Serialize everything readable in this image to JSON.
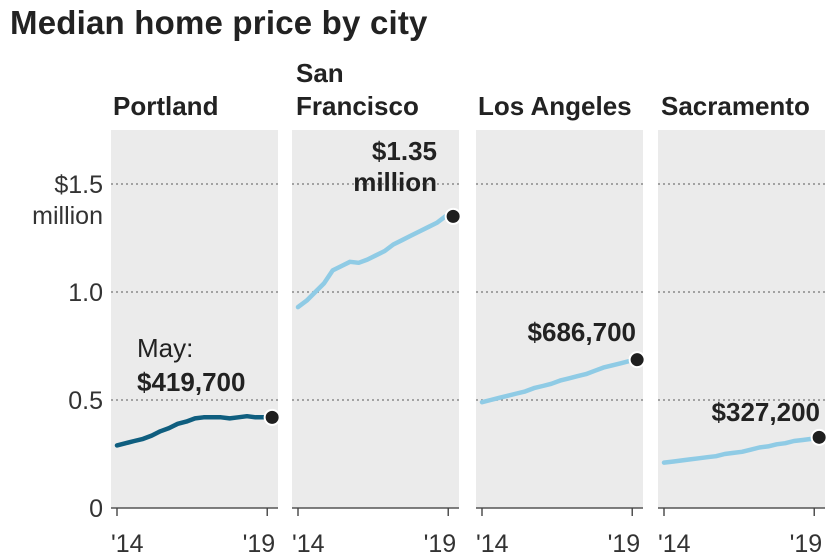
{
  "title": "Median home price by city",
  "colors": {
    "panel_bg": "#ebebeb",
    "portland_line": "#0f5e7f",
    "other_line": "#8fcbe5",
    "marker": "#1f1f1f",
    "grid": "#8a8a8a"
  },
  "chart_data": {
    "type": "line",
    "title": "Median home price by city",
    "y_unit": "million dollars",
    "ylim": [
      0,
      1.75
    ],
    "y_ticks": [
      {
        "value": 0,
        "label": [
          "0"
        ]
      },
      {
        "value": 0.5,
        "label": [
          "0.5"
        ]
      },
      {
        "value": 1.0,
        "label": [
          "1.0"
        ]
      },
      {
        "value": 1.5,
        "label": [
          "$1.5",
          "million"
        ]
      }
    ],
    "x_ticks": [
      "'14",
      "'19"
    ],
    "xlim": [
      2014,
      2019.4
    ],
    "grid": true,
    "panels": [
      {
        "name": [
          "Portland"
        ],
        "callout": [
          "May:",
          "$419,700"
        ],
        "end_value": 0.4197,
        "color_key": "portland_line",
        "x": [
          2014.0,
          2014.3,
          2014.6,
          2014.9,
          2015.2,
          2015.5,
          2015.8,
          2016.1,
          2016.4,
          2016.7,
          2017.0,
          2017.3,
          2017.6,
          2017.9,
          2018.2,
          2018.5,
          2018.8,
          2019.1,
          2019.37
        ],
        "y": [
          0.29,
          0.3,
          0.31,
          0.32,
          0.335,
          0.355,
          0.37,
          0.39,
          0.4,
          0.415,
          0.42,
          0.42,
          0.42,
          0.415,
          0.42,
          0.425,
          0.42,
          0.42,
          0.4197
        ]
      },
      {
        "name": [
          "San",
          "Francisco"
        ],
        "callout": [
          "$1.35",
          "million"
        ],
        "end_value": 1.35,
        "color_key": "other_line",
        "x": [
          2014.0,
          2014.3,
          2014.6,
          2014.9,
          2015.2,
          2015.5,
          2015.8,
          2016.1,
          2016.4,
          2016.7,
          2017.0,
          2017.3,
          2017.6,
          2017.9,
          2018.2,
          2018.5,
          2018.8,
          2019.1,
          2019.37
        ],
        "y": [
          0.93,
          0.96,
          1.0,
          1.04,
          1.1,
          1.12,
          1.14,
          1.135,
          1.15,
          1.17,
          1.19,
          1.22,
          1.24,
          1.26,
          1.28,
          1.3,
          1.32,
          1.35,
          1.35
        ]
      },
      {
        "name": [
          "Los Angeles"
        ],
        "callout": [
          "$686,700"
        ],
        "end_value": 0.6867,
        "color_key": "other_line",
        "x": [
          2014.0,
          2014.3,
          2014.6,
          2014.9,
          2015.2,
          2015.5,
          2015.8,
          2016.1,
          2016.4,
          2016.7,
          2017.0,
          2017.3,
          2017.6,
          2017.9,
          2018.2,
          2018.5,
          2018.8,
          2019.1,
          2019.37
        ],
        "y": [
          0.49,
          0.5,
          0.51,
          0.52,
          0.53,
          0.54,
          0.555,
          0.565,
          0.575,
          0.59,
          0.6,
          0.61,
          0.62,
          0.635,
          0.65,
          0.66,
          0.67,
          0.68,
          0.6867
        ]
      },
      {
        "name": [
          "Sacramento"
        ],
        "callout": [
          "$327,200"
        ],
        "end_value": 0.3272,
        "color_key": "other_line",
        "x": [
          2014.0,
          2014.3,
          2014.6,
          2014.9,
          2015.2,
          2015.5,
          2015.8,
          2016.1,
          2016.4,
          2016.7,
          2017.0,
          2017.3,
          2017.6,
          2017.9,
          2018.2,
          2018.5,
          2018.8,
          2019.1,
          2019.37
        ],
        "y": [
          0.21,
          0.215,
          0.22,
          0.225,
          0.23,
          0.235,
          0.24,
          0.25,
          0.255,
          0.26,
          0.27,
          0.28,
          0.285,
          0.295,
          0.3,
          0.31,
          0.315,
          0.32,
          0.3272
        ]
      }
    ]
  }
}
